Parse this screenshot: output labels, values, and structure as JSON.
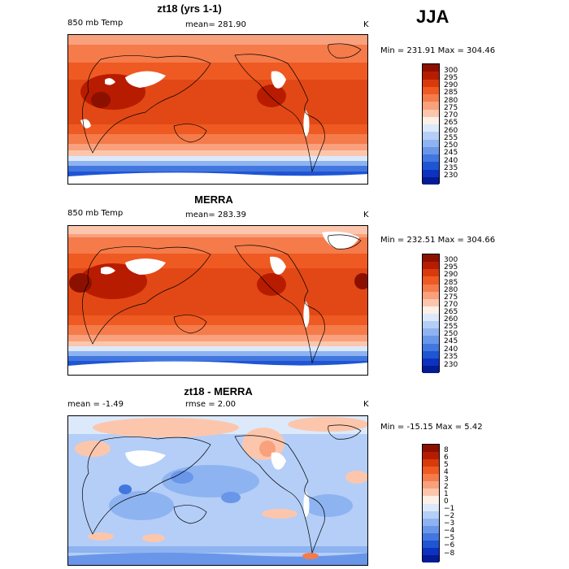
{
  "season": "JJA",
  "panels": [
    {
      "title": "zt18 (yrs 1-1)",
      "left_label": "850 mb Temp",
      "center_label": "mean= 281.90",
      "units": "K",
      "minmax": "Min = 231.91 Max = 304.46",
      "levels": [
        "300",
        "295",
        "290",
        "285",
        "280",
        "275",
        "270",
        "265",
        "260",
        "255",
        "250",
        "245",
        "240",
        "235",
        "230"
      ],
      "colors": [
        "#8c1000",
        "#b81c00",
        "#d93a0b",
        "#ee5a22",
        "#f57b4a",
        "#f9a07d",
        "#fcc6ac",
        "#fdf0e6",
        "#dce9fb",
        "#b4cef7",
        "#8eb3f1",
        "#6a96ea",
        "#4277e0",
        "#1f55d3",
        "#0d32c0",
        "#041b96"
      ]
    },
    {
      "title": "MERRA",
      "left_label": "850 mb Temp",
      "center_label": "mean= 283.39",
      "units": "K",
      "minmax": "Min = 232.51 Max = 304.66",
      "levels": [
        "300",
        "295",
        "290",
        "285",
        "280",
        "275",
        "270",
        "265",
        "260",
        "255",
        "250",
        "245",
        "240",
        "235",
        "230"
      ],
      "colors": [
        "#8c1000",
        "#b81c00",
        "#d93a0b",
        "#ee5a22",
        "#f57b4a",
        "#f9a07d",
        "#fcc6ac",
        "#fdf0e6",
        "#dce9fb",
        "#b4cef7",
        "#8eb3f1",
        "#6a96ea",
        "#4277e0",
        "#1f55d3",
        "#0d32c0",
        "#041b96"
      ]
    },
    {
      "title": "zt18 - MERRA",
      "left_label": "mean =  -1.49",
      "center_label": "rmse =   2.00",
      "units": "K",
      "minmax": "Min = -15.15 Max =   5.42",
      "levels": [
        "8",
        "6",
        "5",
        "4",
        "3",
        "2",
        "1",
        "0",
        "−1",
        "−2",
        "−3",
        "−4",
        "−5",
        "−6",
        "−8"
      ],
      "colors": [
        "#8c1000",
        "#b81c00",
        "#d93a0b",
        "#ee5a22",
        "#f57b4a",
        "#f9a07d",
        "#fcc6ac",
        "#fdf0e6",
        "#dce9fb",
        "#b4cef7",
        "#8eb3f1",
        "#6a96ea",
        "#4277e0",
        "#1f55d3",
        "#0d32c0",
        "#041b96"
      ]
    }
  ]
}
